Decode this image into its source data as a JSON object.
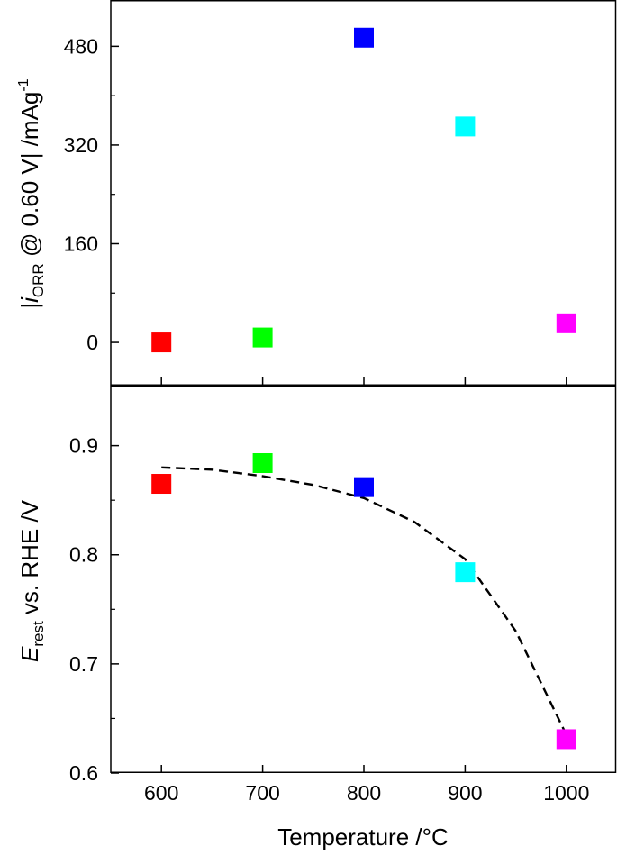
{
  "chart_data": [
    {
      "type": "scatter",
      "panel": "top",
      "xlabel": "Temperature /°C",
      "ylabel": {
        "prefix": "|",
        "main": "i",
        "sub": "ORR",
        "rest": " @ 0.60 V| /mAg",
        "sup": "-1"
      },
      "x": [
        600,
        700,
        800,
        900,
        1000
      ],
      "y": [
        0,
        8,
        494,
        350,
        31
      ],
      "colors": [
        "#ff0000",
        "#00ff00",
        "#0000ff",
        "#00ffff",
        "#ff00ff"
      ],
      "xlim": [
        550,
        1050
      ],
      "ylim": [
        -70,
        555
      ],
      "yticks": [
        0,
        160,
        320,
        480
      ],
      "marker": "square",
      "grid": false,
      "legend": "none"
    },
    {
      "type": "scatter",
      "panel": "bottom",
      "xlabel": "Temperature /°C",
      "ylabel": {
        "main": "E",
        "sub": "rest",
        "rest": " vs. RHE /V"
      },
      "x": [
        600,
        700,
        800,
        900,
        1000
      ],
      "y": [
        0.865,
        0.884,
        0.862,
        0.784,
        0.631
      ],
      "colors": [
        "#ff0000",
        "#00ff00",
        "#0000ff",
        "#00ffff",
        "#ff00ff"
      ],
      "xlim": [
        550,
        1050
      ],
      "ylim": [
        0.6,
        0.955
      ],
      "xticks": [
        600,
        700,
        800,
        900,
        1000
      ],
      "yticks": [
        0.6,
        0.7,
        0.8,
        0.9
      ],
      "marker": "square",
      "fit_line": {
        "style": "dashed",
        "x": [
          600,
          650,
          700,
          750,
          800,
          850,
          900,
          950,
          1000
        ],
        "y": [
          0.88,
          0.878,
          0.872,
          0.864,
          0.852,
          0.83,
          0.796,
          0.73,
          0.635
        ]
      },
      "grid": false,
      "legend": "none"
    }
  ]
}
